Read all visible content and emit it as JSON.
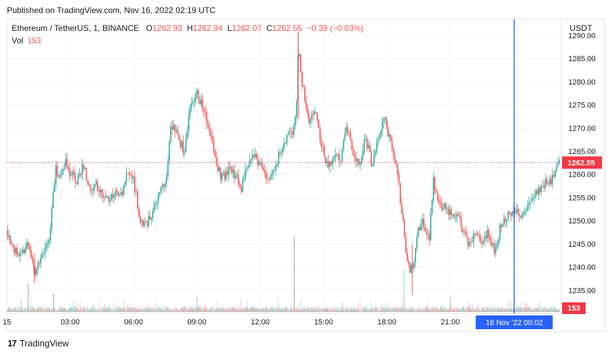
{
  "header": {
    "published": "Published on TradingView.com, Nov 16, 2022 02:19 UTC"
  },
  "legend": {
    "symbol": "Ethereum / TetherUS, 1, BINANCE",
    "open_label": "O",
    "open": "1262.93",
    "high_label": "H",
    "high": "1262.94",
    "low_label": "L",
    "low": "1262.07",
    "close_label": "C",
    "close": "1262.55",
    "change": "−0.39 (−0.03%)",
    "vol_label": "Vol",
    "vol": "153"
  },
  "axis": {
    "unit": "USDT"
  },
  "footer": {
    "brand": "TradingView",
    "logo_glyph": "17"
  },
  "colors": {
    "up": "#26a69a",
    "down": "#ef5350",
    "crosshair": "#2962ff",
    "price_label": "#f23645",
    "grid": "#f0f3fa"
  },
  "chart_data": {
    "type": "candlestick",
    "symbol": "Ethereum / TetherUS",
    "interval": "1",
    "exchange": "BINANCE",
    "ylabel": "USDT",
    "ylim": [
      1230,
      1292
    ],
    "y_ticks": [
      1235,
      1240,
      1245,
      1250,
      1255,
      1260,
      1265,
      1270,
      1275,
      1280,
      1285,
      1290
    ],
    "y_tick_labels": [
      "1235.00",
      "1240.00",
      "1245.00",
      "1250.00",
      "1255.00",
      "1260.00",
      "1265.00",
      "1270.00",
      "1275.00",
      "1280.00",
      "1285.00",
      "1290.00"
    ],
    "x_tick_labels": [
      "15",
      "03:00",
      "06:00",
      "09:00",
      "12:00",
      "15:00",
      "18:00",
      "21:00"
    ],
    "x_tick_hours": [
      0,
      3,
      6,
      9,
      12,
      15,
      18,
      21
    ],
    "x_range_hours": [
      0,
      26.2
    ],
    "last_price": 1262.55,
    "last_price_label": "1262.55",
    "last_volume_label": "153",
    "crosshair_hours": 24.03,
    "crosshair_label": "16 Nov '22   00:02",
    "close_path": [
      [
        0.0,
        1248
      ],
      [
        0.3,
        1244
      ],
      [
        0.7,
        1242
      ],
      [
        1.0,
        1246
      ],
      [
        1.3,
        1239
      ],
      [
        1.6,
        1242
      ],
      [
        2.0,
        1246
      ],
      [
        2.3,
        1261
      ],
      [
        2.6,
        1259
      ],
      [
        2.8,
        1263
      ],
      [
        3.0,
        1260
      ],
      [
        3.3,
        1259
      ],
      [
        3.6,
        1262
      ],
      [
        3.9,
        1257
      ],
      [
        4.2,
        1258
      ],
      [
        4.5,
        1256
      ],
      [
        4.8,
        1254
      ],
      [
        5.1,
        1256
      ],
      [
        5.4,
        1255
      ],
      [
        5.7,
        1261
      ],
      [
        6.0,
        1259
      ],
      [
        6.3,
        1250
      ],
      [
        6.6,
        1249
      ],
      [
        6.9,
        1252
      ],
      [
        7.2,
        1256
      ],
      [
        7.5,
        1258
      ],
      [
        7.8,
        1271
      ],
      [
        8.1,
        1268
      ],
      [
        8.4,
        1265
      ],
      [
        8.7,
        1275
      ],
      [
        9.0,
        1278
      ],
      [
        9.3,
        1274
      ],
      [
        9.6,
        1270
      ],
      [
        9.9,
        1262
      ],
      [
        10.2,
        1259
      ],
      [
        10.5,
        1261
      ],
      [
        10.8,
        1260
      ],
      [
        11.1,
        1257
      ],
      [
        11.4,
        1262
      ],
      [
        11.7,
        1264
      ],
      [
        12.0,
        1262
      ],
      [
        12.3,
        1259
      ],
      [
        12.6,
        1261
      ],
      [
        12.9,
        1264
      ],
      [
        13.2,
        1267
      ],
      [
        13.5,
        1269
      ],
      [
        13.7,
        1272
      ],
      [
        13.8,
        1287
      ],
      [
        14.0,
        1279
      ],
      [
        14.3,
        1272
      ],
      [
        14.6,
        1274
      ],
      [
        14.9,
        1266
      ],
      [
        15.2,
        1262
      ],
      [
        15.5,
        1264
      ],
      [
        15.8,
        1263
      ],
      [
        16.1,
        1271
      ],
      [
        16.4,
        1265
      ],
      [
        16.7,
        1262
      ],
      [
        17.0,
        1268
      ],
      [
        17.3,
        1262
      ],
      [
        17.6,
        1269
      ],
      [
        17.9,
        1272
      ],
      [
        18.2,
        1266
      ],
      [
        18.5,
        1260
      ],
      [
        18.7,
        1252
      ],
      [
        18.9,
        1244
      ],
      [
        19.1,
        1238
      ],
      [
        19.3,
        1242
      ],
      [
        19.5,
        1248
      ],
      [
        19.7,
        1250
      ],
      [
        20.0,
        1246
      ],
      [
        20.2,
        1259
      ],
      [
        20.4,
        1254
      ],
      [
        20.7,
        1253
      ],
      [
        21.0,
        1252
      ],
      [
        21.3,
        1251
      ],
      [
        21.6,
        1248
      ],
      [
        21.9,
        1245
      ],
      [
        22.2,
        1248
      ],
      [
        22.5,
        1246
      ],
      [
        22.8,
        1247
      ],
      [
        23.1,
        1244
      ],
      [
        23.4,
        1249
      ],
      [
        23.7,
        1251
      ],
      [
        24.0,
        1252
      ],
      [
        24.3,
        1251
      ],
      [
        24.6,
        1253
      ],
      [
        24.9,
        1254
      ],
      [
        25.2,
        1257
      ],
      [
        25.5,
        1258
      ],
      [
        25.8,
        1259
      ],
      [
        26.1,
        1262.55
      ]
    ],
    "volume": {
      "typical_max": 40,
      "spikes": [
        [
          13.6,
          160
        ],
        [
          18.8,
          90
        ],
        [
          1.0,
          60
        ],
        [
          2.2,
          40
        ],
        [
          21.0,
          30
        ],
        [
          9.0,
          30
        ]
      ]
    }
  }
}
